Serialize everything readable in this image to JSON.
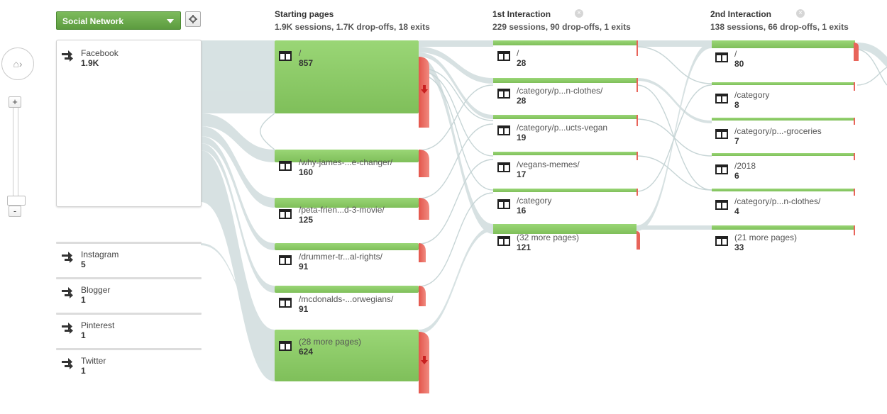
{
  "dimension_selector": {
    "label": "Social Network"
  },
  "columns": [
    {
      "title": "Starting pages",
      "subtitle": "1.9K sessions, 1.7K drop-offs, 18 exits"
    },
    {
      "title": "1st Interaction",
      "subtitle": "229 sessions, 90 drop-offs, 1 exits"
    },
    {
      "title": "2nd Interaction",
      "subtitle": "138 sessions, 66 drop-offs, 1 exits"
    }
  ],
  "sources": [
    {
      "label": "Facebook",
      "count": "1.9K"
    },
    {
      "label": "Instagram",
      "count": "5"
    },
    {
      "label": "Blogger",
      "count": "1"
    },
    {
      "label": "Pinterest",
      "count": "1"
    },
    {
      "label": "Twitter",
      "count": "1"
    }
  ],
  "starting_pages": [
    {
      "label": "/",
      "count": "857"
    },
    {
      "label": "/why-james-...e-changer/",
      "count": "160"
    },
    {
      "label": "/peta-frien...d-3-movie/",
      "count": "125"
    },
    {
      "label": "/drummer-tr...al-rights/",
      "count": "91"
    },
    {
      "label": "/mcdonalds-...orwegians/",
      "count": "91"
    },
    {
      "label": "(28 more pages)",
      "count": "624"
    }
  ],
  "first_interaction": [
    {
      "label": "/",
      "count": "28"
    },
    {
      "label": "/category/p...n-clothes/",
      "count": "28"
    },
    {
      "label": "/category/p...ucts-vegan",
      "count": "19"
    },
    {
      "label": "/vegans-memes/",
      "count": "17"
    },
    {
      "label": "/category",
      "count": "16"
    },
    {
      "label": "(32 more pages)",
      "count": "121"
    }
  ],
  "second_interaction": [
    {
      "label": "/",
      "count": "80"
    },
    {
      "label": "/category",
      "count": "8"
    },
    {
      "label": "/category/p...-groceries",
      "count": "7"
    },
    {
      "label": "/2018",
      "count": "6"
    },
    {
      "label": "/category/p...n-clothes/",
      "count": "4"
    },
    {
      "label": "(21 more pages)",
      "count": "33"
    }
  ],
  "zoom": {
    "plus": "+",
    "minus": "-"
  },
  "colors": {
    "node_green": "#8fcf6a",
    "dropoff_red": "#e8645a",
    "flow_gray": "#d5e0e1"
  },
  "icons": {
    "source": "arrows-icon",
    "page": "page-layout-icon",
    "remove": "remove-column-icon",
    "settings": "gear-icon",
    "home": "home-icon",
    "dropoff": "dropoff-arrow-icon"
  }
}
